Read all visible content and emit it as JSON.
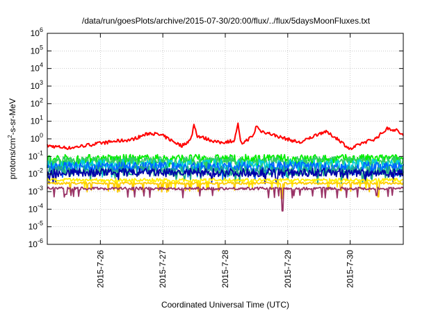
{
  "chart_data": {
    "type": "line",
    "title": "/data/run/goesPlots/archive/2015-07-30/20:00/flux/../flux/5daysMoonFluxes.txt",
    "xlabel": "Coordinated Universal Time (UTC)",
    "ylabel": "protons/cm²-s-sr-MeV",
    "ylabel_parts": {
      "base": "protons/cm",
      "sup": "2",
      "rest": "-s-sr-MeV"
    },
    "y_scale": "log",
    "ylim_exp": [
      -6,
      6
    ],
    "ytick_base": "10",
    "ytick_exps": [
      "-6",
      "-5",
      "-4",
      "-3",
      "-2",
      "-1",
      "0",
      "1",
      "2",
      "3",
      "4",
      "5",
      "6"
    ],
    "xlim_days": [
      25.15,
      30.85
    ],
    "xtick_labels": [
      "2015-7-26",
      "2015-7-27",
      "2015-7-28",
      "2015-7-29",
      "2015-7-30"
    ],
    "xtick_days": [
      26,
      27,
      28,
      29,
      30
    ],
    "grid": true,
    "legend": "none",
    "series": [
      {
        "color": "#ff0000",
        "base": 0.5,
        "noise": 0.12,
        "anchors": [
          [
            25.15,
            0.4
          ],
          [
            25.5,
            0.3
          ],
          [
            25.9,
            0.5
          ],
          [
            26.2,
            0.7
          ],
          [
            26.5,
            0.9
          ],
          [
            26.8,
            2.2
          ],
          [
            27.0,
            1.5
          ],
          [
            27.3,
            0.4
          ],
          [
            27.45,
            0.9
          ],
          [
            27.5,
            7.0
          ],
          [
            27.55,
            1.5
          ],
          [
            27.9,
            0.6
          ],
          [
            28.15,
            0.8
          ],
          [
            28.2,
            8.0
          ],
          [
            28.25,
            0.5
          ],
          [
            28.45,
            1.5
          ],
          [
            28.5,
            6.0
          ],
          [
            28.55,
            3.0
          ],
          [
            28.9,
            1.2
          ],
          [
            29.2,
            0.6
          ],
          [
            29.5,
            2.0
          ],
          [
            29.6,
            2.6
          ],
          [
            29.8,
            1.0
          ],
          [
            30.0,
            0.25
          ],
          [
            30.2,
            0.6
          ],
          [
            30.4,
            1.0
          ],
          [
            30.6,
            4.0
          ],
          [
            30.75,
            3.0
          ],
          [
            30.85,
            1.5
          ]
        ]
      },
      {
        "color": "#00ee00",
        "base": 0.075,
        "noise": 0.3,
        "anchors": []
      },
      {
        "color": "#33cc66",
        "base": 0.055,
        "noise": 0.3,
        "anchors": []
      },
      {
        "color": "#00ccdd",
        "base": 0.035,
        "noise": 0.35,
        "anchors": []
      },
      {
        "color": "#0066ff",
        "base": 0.025,
        "noise": 0.35,
        "anchors": []
      },
      {
        "color": "#22aa88",
        "base": 0.015,
        "noise": 0.35,
        "anchors": []
      },
      {
        "color": "#0000aa",
        "base": 0.012,
        "noise": 0.3,
        "anchors": []
      },
      {
        "color": "#ffee00",
        "base": 0.0045,
        "noise": 0.12,
        "anchors": []
      },
      {
        "color": "#ffcc00",
        "base": 0.003,
        "noise": 0.08,
        "anchors": [],
        "dips": [
          [
            28.9,
            0.0004
          ],
          [
            30.45,
            0.0005
          ]
        ]
      },
      {
        "color": "#993366",
        "base": 0.0015,
        "noise": 0.1,
        "anchors": [],
        "dips": [
          [
            25.45,
            0.0007
          ],
          [
            28.92,
            8e-05
          ],
          [
            30.42,
            0.0006
          ]
        ]
      }
    ]
  }
}
